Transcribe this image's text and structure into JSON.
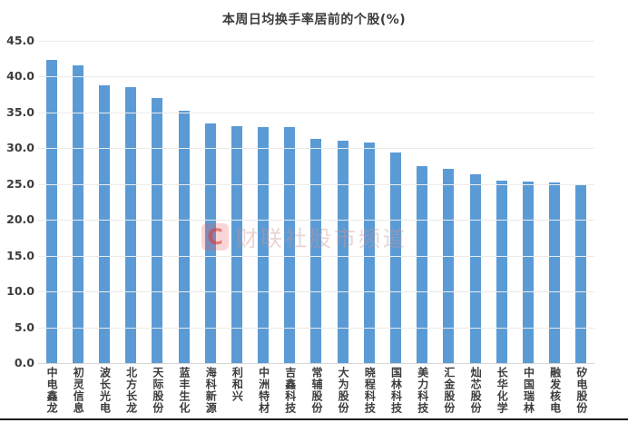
{
  "title": "本周日均换手率居前的个股(%)",
  "watermark": {
    "logo_letter": "C",
    "text": "财联社股市频道"
  },
  "colors": {
    "bar": "#5b9bd5",
    "gridline": "#ebebeb",
    "axis_baseline": "#d6d6d6",
    "text": "#3d3d3d",
    "watermark_red": "#db3c3c"
  },
  "chart_data": {
    "type": "bar",
    "title": "本周日均换手率居前的个股(%)",
    "categories": [
      "中电鑫龙",
      "初灵信息",
      "波长光电",
      "北方长龙",
      "天际股份",
      "蓝丰生化",
      "海科新源",
      "利和兴",
      "中洲特材",
      "吉鑫科技",
      "常辅股份",
      "大为股份",
      "晓程科技",
      "国林科技",
      "美力科技",
      "汇金股份",
      "灿芯股份",
      "长华化学",
      "中国瑞林",
      "融发核电",
      "矽电股份"
    ],
    "values": [
      42.4,
      41.6,
      38.8,
      38.6,
      37.0,
      35.3,
      33.5,
      33.1,
      32.9,
      32.9,
      31.3,
      31.0,
      30.8,
      29.4,
      27.5,
      27.1,
      26.4,
      25.5,
      25.4,
      25.2,
      24.9
    ],
    "xlabel": "",
    "ylabel": "",
    "ylim": [
      0,
      45
    ],
    "ytick_step": 5,
    "ytick_format_decimals": 1,
    "grid": true,
    "legend_position": "none",
    "bar_color": "#5b9bd5",
    "x_tick_label_orientation": "vertical-upright"
  }
}
